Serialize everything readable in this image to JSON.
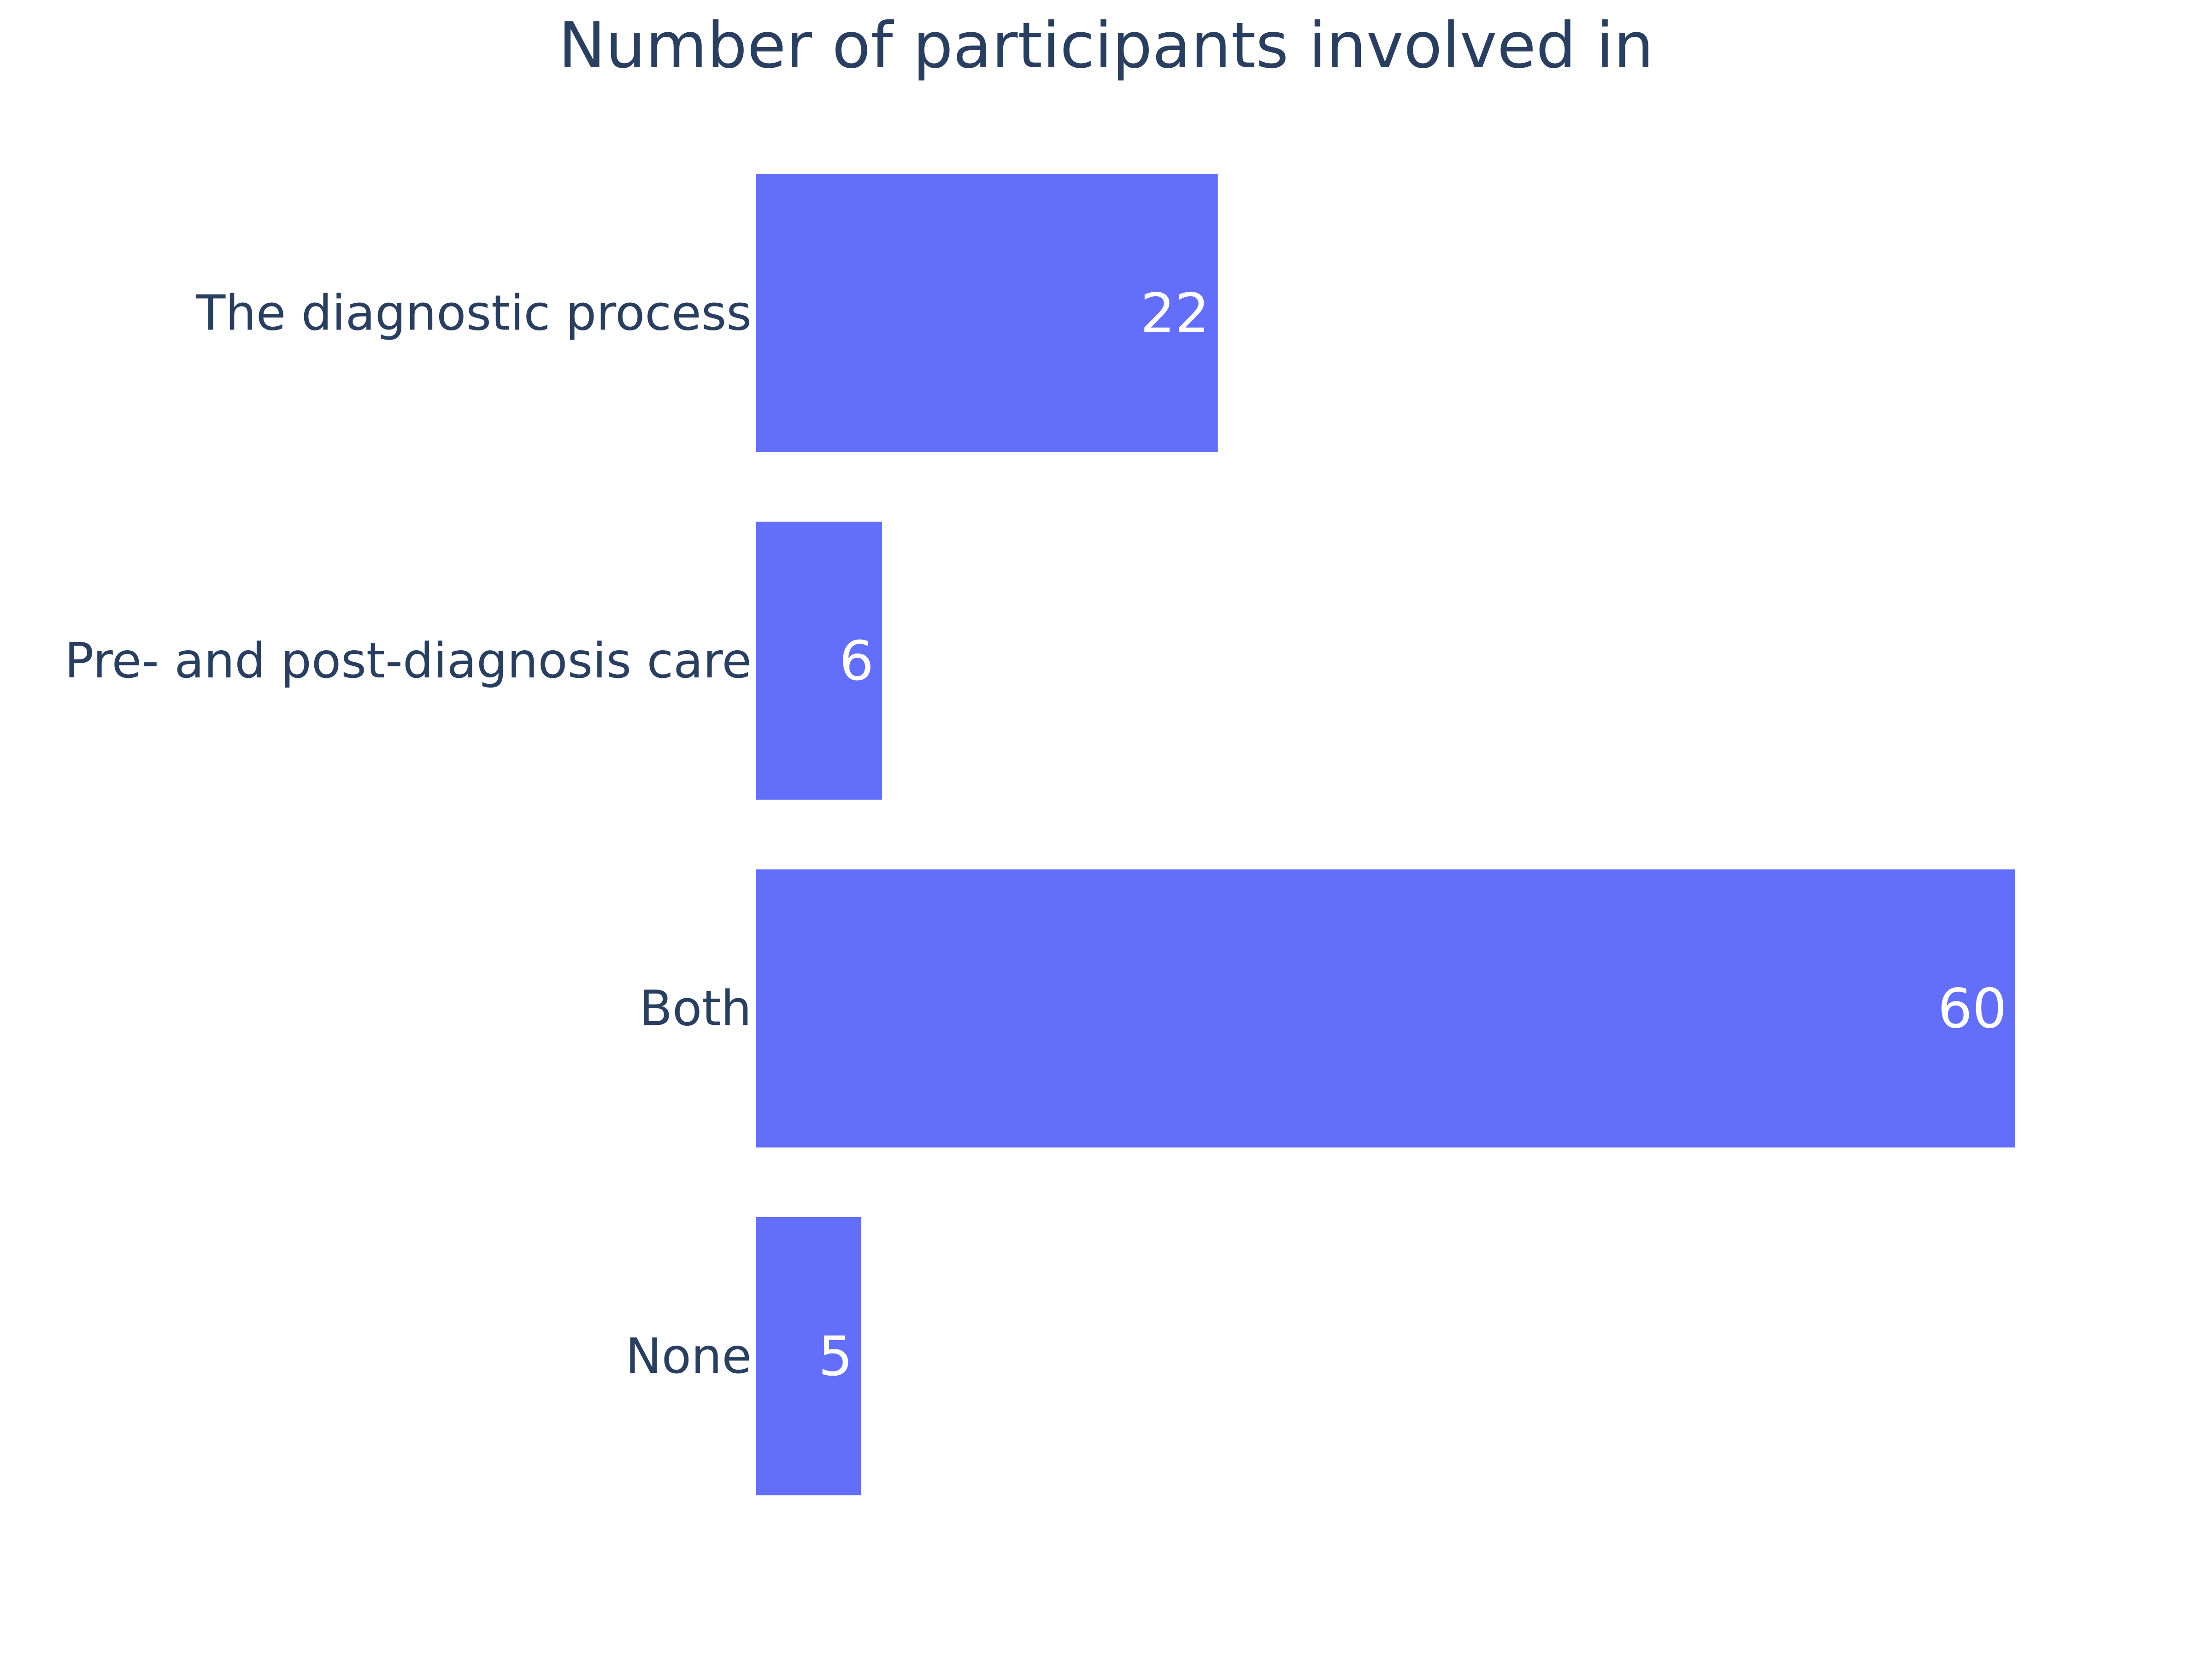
{
  "chart_data": {
    "type": "bar",
    "orientation": "horizontal",
    "title": "Number of participants involved in",
    "categories": [
      "The diagnostic process",
      "Pre- and post-diagnosis care",
      "Both",
      "None"
    ],
    "values": [
      22,
      6,
      60,
      5
    ],
    "value_labels": [
      "22",
      "6",
      "60",
      "5"
    ],
    "xlim": [
      0,
      60
    ],
    "grid": false,
    "legend": "none",
    "colors": {
      "bar": "#636efa",
      "text": "#2a3f5f",
      "value_text": "#ffffff",
      "background": "#ffffff"
    }
  }
}
